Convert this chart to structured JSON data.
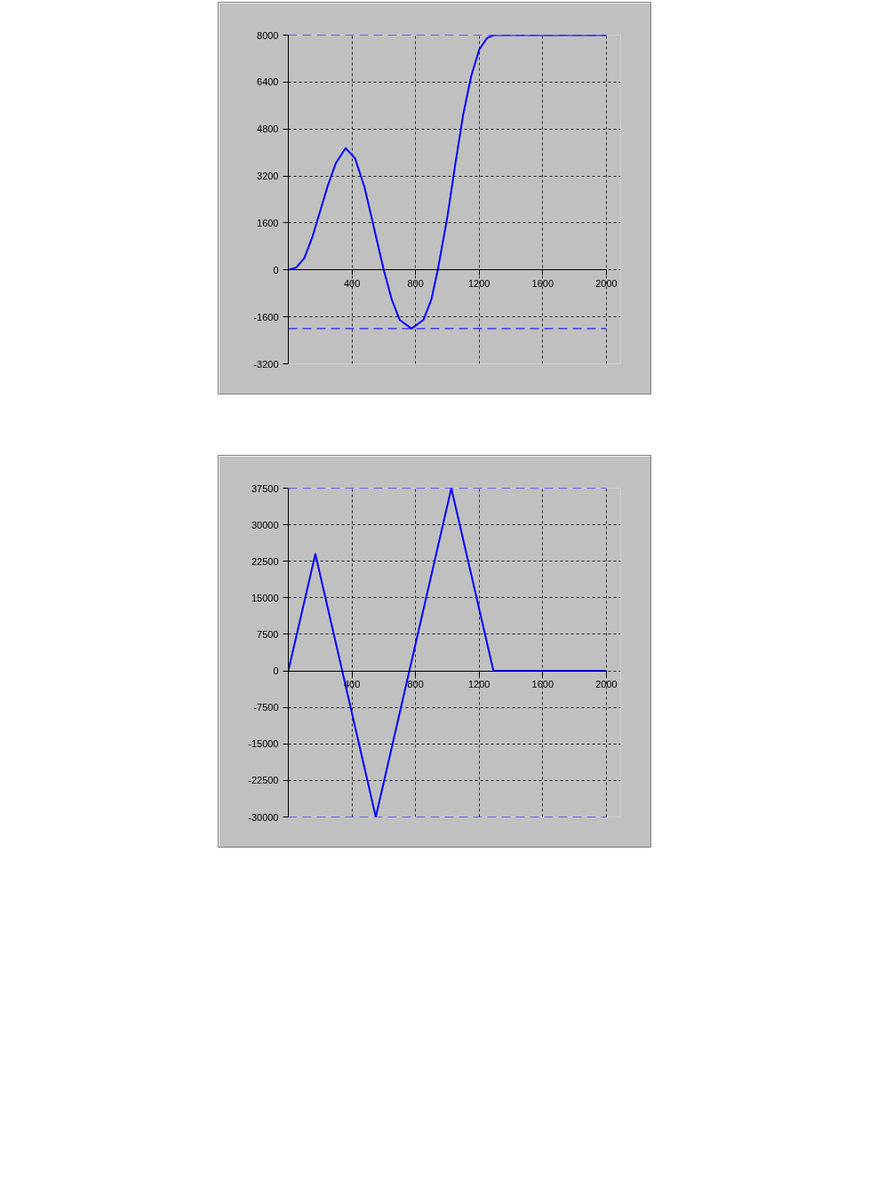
{
  "chart_data": [
    {
      "type": "line",
      "x": [
        0,
        50,
        100,
        150,
        200,
        250,
        300,
        360,
        420,
        480,
        540,
        600,
        650,
        700,
        775,
        850,
        900,
        940,
        1000,
        1050,
        1100,
        1150,
        1200,
        1250,
        1290,
        2000
      ],
      "series": [
        {
          "color": "#0000ff",
          "values": [
            0,
            80,
            400,
            1100,
            2000,
            2900,
            3650,
            4150,
            3800,
            2800,
            1400,
            0,
            -1000,
            -1700,
            -2000,
            -1700,
            -1000,
            0,
            1800,
            3600,
            5300,
            6600,
            7500,
            7900,
            8000,
            8000
          ]
        }
      ],
      "xlim": [
        0,
        2000
      ],
      "xticks": [
        400,
        800,
        1200,
        1600,
        2000
      ],
      "ylim": [
        -3200,
        8000
      ],
      "yticks": [
        -3200,
        -1600,
        0,
        1600,
        3200,
        4800,
        6400,
        8000
      ],
      "grid": true,
      "line_style": "solid",
      "ref_lines": [
        {
          "axis": "y",
          "value": 8000,
          "color": "#0000ff",
          "line_style": "dashed"
        },
        {
          "axis": "y",
          "value": -2000,
          "color": "#0000ff",
          "line_style": "dashed"
        }
      ]
    },
    {
      "type": "line",
      "x": [
        0,
        170,
        550,
        1025,
        1290,
        2000
      ],
      "series": [
        {
          "color": "#0000ff",
          "values": [
            0,
            24000,
            -30000,
            37500,
            0,
            0
          ]
        }
      ],
      "xlim": [
        0,
        2000
      ],
      "xticks": [
        400,
        800,
        1200,
        1600,
        2000
      ],
      "ylim": [
        -30000,
        37500
      ],
      "yticks": [
        -30000,
        -22500,
        -15000,
        -7500,
        0,
        7500,
        15000,
        22500,
        30000,
        37500
      ],
      "grid": true,
      "line_style": "solid",
      "ref_lines": [
        {
          "axis": "y",
          "value": 37500,
          "color": "#0000ff",
          "line_style": "dashed"
        },
        {
          "axis": "y",
          "value": -30000,
          "color": "#0000ff",
          "line_style": "dashed"
        }
      ]
    }
  ]
}
